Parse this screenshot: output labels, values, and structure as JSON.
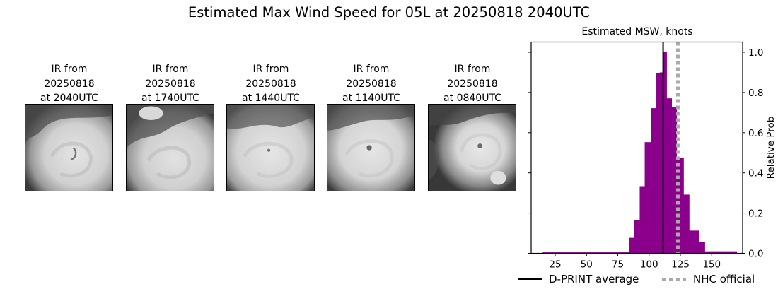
{
  "figure": {
    "title": "Estimated Max Wind Speed for 05L at 20250818 2040UTC"
  },
  "ir_panels": [
    {
      "line1": "IR from",
      "line2": "20250818",
      "line3": "at 2040UTC"
    },
    {
      "line1": "IR from",
      "line2": "20250818",
      "line3": "at 1740UTC"
    },
    {
      "line1": "IR from",
      "line2": "20250818",
      "line3": "at 1440UTC"
    },
    {
      "line1": "IR from",
      "line2": "20250818",
      "line3": "at 1140UTC"
    },
    {
      "line1": "IR from",
      "line2": "20250818",
      "line3": "at 0840UTC"
    }
  ],
  "colors": {
    "histogram": "#8b008b",
    "dprint_line": "#000000",
    "nhc_line": "#aaaaaa"
  },
  "legend": {
    "dprint": "D-PRINT average",
    "nhc": "NHC official"
  },
  "chart_data": {
    "type": "bar",
    "title": "Estimated MSW, knots",
    "xlabel": "",
    "ylabel": "Relative Prob",
    "xlim": [
      5,
      175
    ],
    "ylim": [
      0,
      1.05
    ],
    "xticks": [
      25,
      50,
      75,
      100,
      125,
      150
    ],
    "yticks": [
      0.0,
      0.2,
      0.4,
      0.6,
      0.8,
      1.0
    ],
    "ytick_labels": [
      "0.0",
      "0.2",
      "0.4",
      "0.6",
      "0.8",
      "1.0"
    ],
    "y_axis_position": "right",
    "grid": false,
    "bins": [
      {
        "x0": 15.0,
        "x1": 84.0,
        "value": 0.005
      },
      {
        "x0": 84.0,
        "x1": 88.0,
        "value": 0.077
      },
      {
        "x0": 88.0,
        "x1": 92.5,
        "value": 0.165
      },
      {
        "x0": 92.5,
        "x1": 96.5,
        "value": 0.334
      },
      {
        "x0": 96.5,
        "x1": 101.5,
        "value": 0.553
      },
      {
        "x0": 101.5,
        "x1": 105.5,
        "value": 0.722
      },
      {
        "x0": 105.5,
        "x1": 108.5,
        "value": 0.898
      },
      {
        "x0": 108.5,
        "x1": 111.5,
        "value": 0.9
      },
      {
        "x0": 111.5,
        "x1": 114.0,
        "value": 1.0
      },
      {
        "x0": 114.0,
        "x1": 118.0,
        "value": 0.771
      },
      {
        "x0": 118.0,
        "x1": 122.0,
        "value": 0.729
      },
      {
        "x0": 122.0,
        "x1": 127.5,
        "value": 0.475
      },
      {
        "x0": 127.5,
        "x1": 132.0,
        "value": 0.292
      },
      {
        "x0": 132.0,
        "x1": 139.5,
        "value": 0.113
      },
      {
        "x0": 139.5,
        "x1": 144.5,
        "value": 0.056
      },
      {
        "x0": 144.5,
        "x1": 170.0,
        "value": 0.01
      }
    ],
    "vlines": [
      {
        "name": "D-PRINT average",
        "x": 111.2,
        "style": "solid",
        "color": "#000000"
      },
      {
        "name": "NHC official",
        "x": 123.0,
        "style": "dotted",
        "color": "#aaaaaa"
      }
    ],
    "legend": [
      "D-PRINT average",
      "NHC official"
    ],
    "legend_position": "bottom"
  }
}
